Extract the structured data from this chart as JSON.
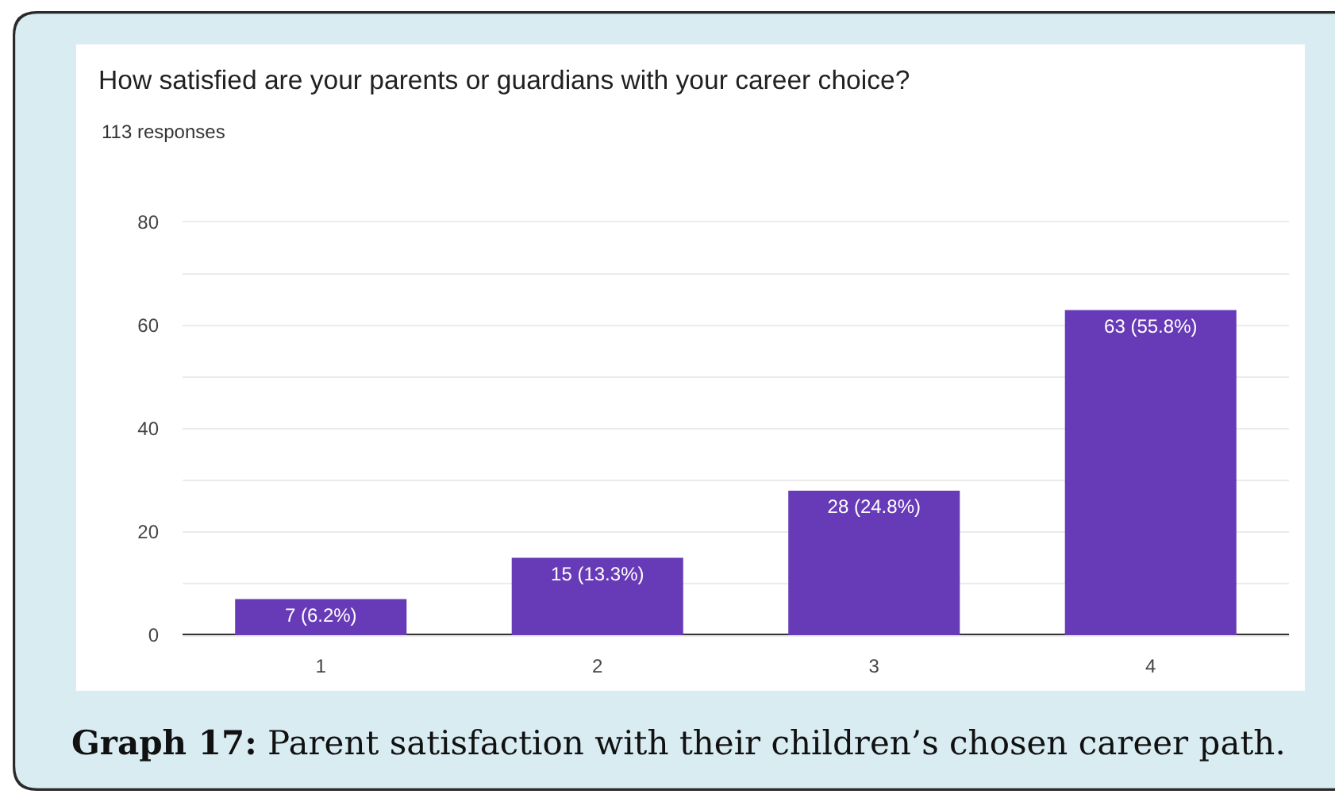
{
  "chart_data": {
    "type": "bar",
    "title": "How satisfied are your parents or guardians with your career choice?",
    "subtitle": "113 responses",
    "categories": [
      "1",
      "2",
      "3",
      "4"
    ],
    "values": [
      7,
      15,
      28,
      63
    ],
    "color": "#673ab7",
    "value_labels": [
      "7 (6.2%)",
      "15 (13.3%)",
      "28 (24.8%)",
      "63 (55.8%)"
    ],
    "ylim": [
      0,
      80
    ],
    "yticks": [
      0,
      {
        "value": 10,
        "label": null
      },
      20,
      {
        "value": 30,
        "label": null
      },
      40,
      {
        "value": 50,
        "label": null
      },
      60,
      {
        "value": 70,
        "label": null
      },
      80
    ],
    "grid": "y",
    "annotations": [
      "Graph 17:",
      "Parent satisfaction with their children’s chosen career path."
    ]
  }
}
